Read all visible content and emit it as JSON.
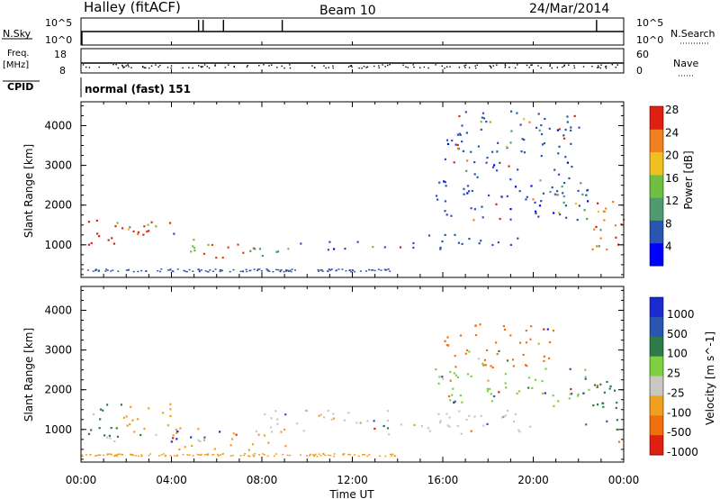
{
  "header": {
    "station": "Halley (fitACF)",
    "beam": "Beam 10",
    "date": "24/Mar/2014"
  },
  "nsky": {
    "label": "N.Sky",
    "ticks": [
      "10^5",
      "10^0"
    ],
    "right_label": "N.Search",
    "right_ticks": [
      "10^5",
      "10^0"
    ]
  },
  "freq": {
    "label_top": "Freq.",
    "label_unit": "[MHz]",
    "ticks": [
      "18",
      "8"
    ],
    "right_label": "Nave",
    "right_ticks": [
      "60",
      "0"
    ]
  },
  "cpid": {
    "label": "CPID",
    "text": "normal (fast) 151"
  },
  "time_axis": {
    "title": "Time UT",
    "ticks": [
      "00:00",
      "04:00",
      "08:00",
      "12:00",
      "16:00",
      "20:00",
      "00:00"
    ]
  },
  "chart_data": [
    {
      "type": "heatmap",
      "quantity": "Power",
      "ylabel": "Slant Range [km]",
      "xlabel": "Time UT",
      "xlim": [
        0,
        24
      ],
      "ylim": [
        180,
        4600
      ],
      "yticks": [
        1000,
        2000,
        3000,
        4000
      ],
      "colorbar": {
        "label": "Power [dB]",
        "ticks": [
          "4",
          "8",
          "12",
          "16",
          "20",
          "24",
          "28"
        ],
        "colors": [
          "#0000ff",
          "#2a55b0",
          "#4f9a6f",
          "#6fbf40",
          "#f0c020",
          "#f08020",
          "#e02010"
        ]
      },
      "bands": [
        {
          "t0": 0.0,
          "t1": 1.8,
          "r0": 900,
          "r1": 1700,
          "color": "#e02010"
        },
        {
          "t0": 1.8,
          "t1": 4.2,
          "r0": 1000,
          "r1": 1700,
          "color": "#e82a10"
        },
        {
          "t0": 3.6,
          "t1": 5.6,
          "r0": 850,
          "r1": 1200,
          "color": "#6fbf40"
        },
        {
          "t0": 5.2,
          "t1": 7.6,
          "r0": 700,
          "r1": 1100,
          "color": "#e04010"
        },
        {
          "t0": 7.2,
          "t1": 9.3,
          "r0": 650,
          "r1": 1050,
          "color": "#4f9a6f"
        },
        {
          "t0": 9.0,
          "t1": 14.5,
          "r0": 900,
          "r1": 1100,
          "color": "#2a55b0"
        },
        {
          "t0": 14.5,
          "t1": 19.5,
          "r0": 900,
          "r1": 1300,
          "color": "#2a55b0"
        },
        {
          "t0": 15.5,
          "t1": 22.5,
          "r0": 1600,
          "r1": 2600,
          "color": "#2a55b0"
        },
        {
          "t0": 20.5,
          "t1": 22.2,
          "r0": 2000,
          "r1": 2600,
          "color": "#4f9a6f"
        },
        {
          "t0": 22.3,
          "t1": 24.0,
          "r0": 900,
          "r1": 2200,
          "color": "#f08020"
        },
        {
          "t0": 23.3,
          "t1": 24.0,
          "r0": 900,
          "r1": 1600,
          "color": "#e02010"
        },
        {
          "t0": 16.0,
          "t1": 22.0,
          "r0": 2600,
          "r1": 4400,
          "color": "#2a55b0"
        }
      ]
    },
    {
      "type": "heatmap",
      "quantity": "Velocity",
      "ylabel": "Slant Range [km]",
      "xlabel": "Time UT",
      "xlim": [
        0,
        24
      ],
      "ylim": [
        180,
        4600
      ],
      "yticks": [
        1000,
        2000,
        3000,
        4000
      ],
      "colorbar": {
        "label": "Velocity [m s^-1]",
        "ticks": [
          "1000",
          "500",
          "100",
          "25",
          "-25",
          "-100",
          "-500",
          "-1000"
        ],
        "colors": [
          "#1a2ad0",
          "#2a55b0",
          "#2e7a48",
          "#7fd040",
          "#c8c8c0",
          "#f0a020",
          "#f07010",
          "#e02010"
        ]
      },
      "bands": [
        {
          "t0": 0.0,
          "t1": 1.8,
          "r0": 800,
          "r1": 1700,
          "color": "#2e7a48"
        },
        {
          "t0": 1.8,
          "t1": 4.0,
          "r0": 900,
          "r1": 1700,
          "color": "#f0a020"
        },
        {
          "t0": 1.0,
          "t1": 6.5,
          "r0": 700,
          "r1": 900,
          "color": "#c8c8c0"
        },
        {
          "t0": 4.0,
          "t1": 9.3,
          "r0": 500,
          "r1": 1100,
          "color": "#f0a020"
        },
        {
          "t0": 7.5,
          "t1": 20.0,
          "r0": 900,
          "r1": 1500,
          "color": "#c8c8c0"
        },
        {
          "t0": 15.5,
          "t1": 22.5,
          "r0": 1600,
          "r1": 2600,
          "color": "#7fd040"
        },
        {
          "t0": 16.0,
          "t1": 21.0,
          "r0": 2600,
          "r1": 3700,
          "color": "#f07010"
        },
        {
          "t0": 22.2,
          "t1": 24.0,
          "r0": 1000,
          "r1": 2300,
          "color": "#2e7a48"
        },
        {
          "t0": 23.5,
          "t1": 24.0,
          "r0": 700,
          "r1": 1000,
          "color": "#f0a020"
        }
      ]
    }
  ]
}
